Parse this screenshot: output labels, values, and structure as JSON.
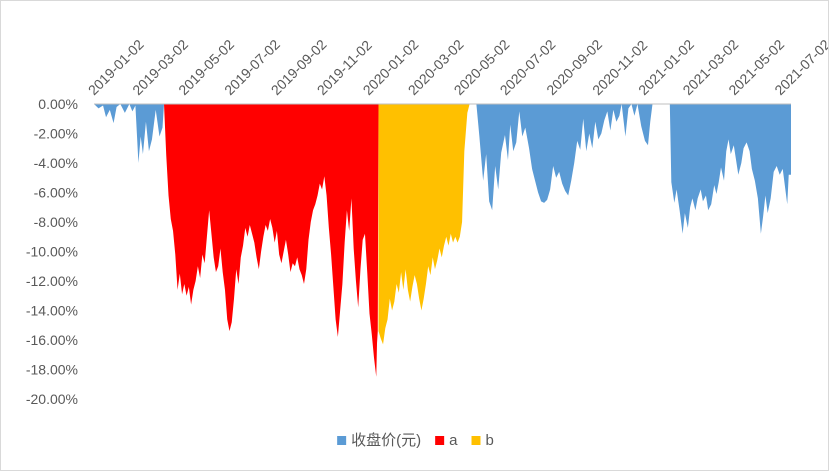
{
  "chart_data": {
    "type": "area",
    "title": "",
    "xlabel": "",
    "ylabel": "",
    "x_tick_labels": [
      "2019-01-02",
      "2019-03-02",
      "2019-05-02",
      "2019-07-02",
      "2019-09-02",
      "2019-11-02",
      "2020-01-02",
      "2020-03-02",
      "2020-05-02",
      "2020-07-02",
      "2020-09-02",
      "2020-11-02",
      "2021-01-02",
      "2021-03-02",
      "2021-05-02",
      "2021-07-02"
    ],
    "xlim": [
      "2019-01-02",
      "2021-07-16"
    ],
    "y_tick_labels": [
      "0.00%",
      "-2.00%",
      "-4.00%",
      "-6.00%",
      "-8.00%",
      "-10.00%",
      "-12.00%",
      "-14.00%",
      "-16.00%",
      "-18.00%",
      "-20.00%"
    ],
    "ylim": [
      -20,
      0
    ],
    "y_unit": "%",
    "grid": false,
    "legend_position": "bottom",
    "series": [
      {
        "name": "收盘价(元)",
        "color": "#5B9BD5",
        "points": [
          [
            "2019-01-02",
            0
          ],
          [
            "2019-01-08",
            -0.3
          ],
          [
            "2019-01-14",
            -0.1
          ],
          [
            "2019-01-18",
            -0.9
          ],
          [
            "2019-01-23",
            -0.4
          ],
          [
            "2019-01-28",
            -1.3
          ],
          [
            "2019-02-01",
            -0.2
          ],
          [
            "2019-02-06",
            0
          ],
          [
            "2019-02-12",
            -0.6
          ],
          [
            "2019-02-18",
            0
          ],
          [
            "2019-02-22",
            -0.5
          ],
          [
            "2019-02-26",
            -0.1
          ],
          [
            "2019-03-02",
            -4.0
          ],
          [
            "2019-03-05",
            -2.2
          ],
          [
            "2019-03-08",
            -3.4
          ],
          [
            "2019-03-12",
            -1.2
          ],
          [
            "2019-03-16",
            -3.2
          ],
          [
            "2019-03-20",
            -2.4
          ],
          [
            "2019-03-25",
            -0.4
          ],
          [
            "2019-03-30",
            -2.2
          ],
          [
            "2019-04-03",
            -1.6
          ],
          [
            "2019-04-05",
            0
          ],
          [
            "2020-05-24",
            0
          ],
          [
            "2020-05-28",
            -2.2
          ],
          [
            "2020-06-02",
            -5.2
          ],
          [
            "2020-06-06",
            -3.4
          ],
          [
            "2020-06-10",
            -6.6
          ],
          [
            "2020-06-14",
            -7.2
          ],
          [
            "2020-06-18",
            -4.2
          ],
          [
            "2020-06-22",
            -5.8
          ],
          [
            "2020-06-26",
            -3.3
          ],
          [
            "2020-07-01",
            -2.1
          ],
          [
            "2020-07-05",
            -3.8
          ],
          [
            "2020-07-08",
            -1.4
          ],
          [
            "2020-07-12",
            -3.2
          ],
          [
            "2020-07-16",
            -2.6
          ],
          [
            "2020-07-20",
            -0.5
          ],
          [
            "2020-07-24",
            -2.2
          ],
          [
            "2020-07-28",
            -1.6
          ],
          [
            "2020-08-02",
            -3.0
          ],
          [
            "2020-08-06",
            -4.4
          ],
          [
            "2020-08-10",
            -5.2
          ],
          [
            "2020-08-14",
            -6.0
          ],
          [
            "2020-08-18",
            -6.6
          ],
          [
            "2020-08-22",
            -6.7
          ],
          [
            "2020-08-26",
            -6.5
          ],
          [
            "2020-08-30",
            -5.8
          ],
          [
            "2020-09-03",
            -4.2
          ],
          [
            "2020-09-07",
            -5.0
          ],
          [
            "2020-09-11",
            -4.6
          ],
          [
            "2020-09-15",
            -5.4
          ],
          [
            "2020-09-19",
            -5.9
          ],
          [
            "2020-09-23",
            -6.2
          ],
          [
            "2020-09-27",
            -5.2
          ],
          [
            "2020-10-01",
            -4.0
          ],
          [
            "2020-10-05",
            -2.5
          ],
          [
            "2020-10-09",
            -3.1
          ],
          [
            "2020-10-13",
            -1.0
          ],
          [
            "2020-10-17",
            -3.2
          ],
          [
            "2020-10-21",
            -2.0
          ],
          [
            "2020-10-25",
            -3.0
          ],
          [
            "2020-10-29",
            -1.2
          ],
          [
            "2020-11-02",
            -2.4
          ],
          [
            "2020-11-06",
            -2.0
          ],
          [
            "2020-11-10",
            -1.1
          ],
          [
            "2020-11-14",
            -0.5
          ],
          [
            "2020-11-18",
            -1.8
          ],
          [
            "2020-11-22",
            -0.4
          ],
          [
            "2020-11-26",
            -1.2
          ],
          [
            "2020-11-30",
            -0.8
          ],
          [
            "2020-12-03",
            0
          ],
          [
            "2020-12-08",
            -2.2
          ],
          [
            "2020-12-12",
            -0.3
          ],
          [
            "2020-12-16",
            0
          ],
          [
            "2020-12-20",
            -0.8
          ],
          [
            "2020-12-24",
            0
          ],
          [
            "2020-12-29",
            -1.5
          ],
          [
            "2021-01-03",
            -2.5
          ],
          [
            "2021-01-07",
            -2.8
          ],
          [
            "2021-01-10",
            -1.2
          ],
          [
            "2021-01-13",
            0
          ],
          [
            "2021-01-16",
            0
          ],
          [
            "2021-02-05",
            0
          ],
          [
            "2021-02-07",
            -5.3
          ],
          [
            "2021-02-11",
            -6.7
          ],
          [
            "2021-02-14",
            -5.8
          ],
          [
            "2021-02-18",
            -7.2
          ],
          [
            "2021-02-22",
            -8.8
          ],
          [
            "2021-02-25",
            -7.4
          ],
          [
            "2021-03-01",
            -8.4
          ],
          [
            "2021-03-04",
            -7.0
          ],
          [
            "2021-03-07",
            -6.4
          ],
          [
            "2021-03-11",
            -7.2
          ],
          [
            "2021-03-14",
            -6.4
          ],
          [
            "2021-03-18",
            -5.8
          ],
          [
            "2021-03-21",
            -6.6
          ],
          [
            "2021-03-25",
            -6.2
          ],
          [
            "2021-03-28",
            -7.2
          ],
          [
            "2021-04-01",
            -6.8
          ],
          [
            "2021-04-05",
            -5.5
          ],
          [
            "2021-04-08",
            -6.1
          ],
          [
            "2021-04-11",
            -5.3
          ],
          [
            "2021-04-14",
            -4.3
          ],
          [
            "2021-04-18",
            -5.2
          ],
          [
            "2021-04-21",
            -3.2
          ],
          [
            "2021-04-24",
            -2.4
          ],
          [
            "2021-04-27",
            -3.4
          ],
          [
            "2021-05-01",
            -2.8
          ],
          [
            "2021-05-04",
            -3.8
          ],
          [
            "2021-05-07",
            -4.8
          ],
          [
            "2021-05-11",
            -4.0
          ],
          [
            "2021-05-14",
            -3.0
          ],
          [
            "2021-05-18",
            -2.6
          ],
          [
            "2021-05-22",
            -3.2
          ],
          [
            "2021-05-25",
            -4.4
          ],
          [
            "2021-05-29",
            -5.2
          ],
          [
            "2021-06-02",
            -6.4
          ],
          [
            "2021-06-06",
            -8.8
          ],
          [
            "2021-06-09",
            -7.6
          ],
          [
            "2021-06-12",
            -6.2
          ],
          [
            "2021-06-15",
            -7.4
          ],
          [
            "2021-06-19",
            -6.4
          ],
          [
            "2021-06-23",
            -4.6
          ],
          [
            "2021-06-27",
            -4.2
          ],
          [
            "2021-07-01",
            -4.8
          ],
          [
            "2021-07-05",
            -4.4
          ],
          [
            "2021-07-08",
            -5.6
          ],
          [
            "2021-07-11",
            -6.8
          ],
          [
            "2021-07-13",
            -4.8
          ],
          [
            "2021-07-16",
            -4.8
          ]
        ]
      },
      {
        "name": "a",
        "color": "#FF0000",
        "points": [
          [
            "2019-04-05",
            0
          ],
          [
            "2019-04-08",
            -3.5
          ],
          [
            "2019-04-11",
            -6.2
          ],
          [
            "2019-04-14",
            -7.8
          ],
          [
            "2019-04-17",
            -8.6
          ],
          [
            "2019-04-20",
            -10.2
          ],
          [
            "2019-04-23",
            -12.6
          ],
          [
            "2019-04-26",
            -11.5
          ],
          [
            "2019-04-29",
            -12.9
          ],
          [
            "2019-05-02",
            -12.2
          ],
          [
            "2019-05-05",
            -13.0
          ],
          [
            "2019-05-08",
            -12.4
          ],
          [
            "2019-05-11",
            -13.6
          ],
          [
            "2019-05-14",
            -12.6
          ],
          [
            "2019-05-17",
            -12.0
          ],
          [
            "2019-05-20",
            -11.0
          ],
          [
            "2019-05-23",
            -11.8
          ],
          [
            "2019-05-26",
            -10.2
          ],
          [
            "2019-05-29",
            -10.8
          ],
          [
            "2019-06-01",
            -9.0
          ],
          [
            "2019-06-04",
            -7.2
          ],
          [
            "2019-06-07",
            -8.8
          ],
          [
            "2019-06-10",
            -10.4
          ],
          [
            "2019-06-13",
            -11.4
          ],
          [
            "2019-06-16",
            -11.0
          ],
          [
            "2019-06-19",
            -9.8
          ],
          [
            "2019-06-22",
            -11.4
          ],
          [
            "2019-06-25",
            -12.6
          ],
          [
            "2019-06-28",
            -14.6
          ],
          [
            "2019-07-01",
            -15.4
          ],
          [
            "2019-07-04",
            -14.8
          ],
          [
            "2019-07-07",
            -13.2
          ],
          [
            "2019-07-10",
            -11.2
          ],
          [
            "2019-07-13",
            -12.2
          ],
          [
            "2019-07-16",
            -10.4
          ],
          [
            "2019-07-19",
            -9.6
          ],
          [
            "2019-07-22",
            -8.4
          ],
          [
            "2019-07-25",
            -9.0
          ],
          [
            "2019-07-28",
            -8.2
          ],
          [
            "2019-07-31",
            -8.8
          ],
          [
            "2019-08-03",
            -9.4
          ],
          [
            "2019-08-06",
            -10.4
          ],
          [
            "2019-08-09",
            -11.2
          ],
          [
            "2019-08-12",
            -10.0
          ],
          [
            "2019-08-15",
            -9.0
          ],
          [
            "2019-08-18",
            -8.2
          ],
          [
            "2019-08-21",
            -8.6
          ],
          [
            "2019-08-24",
            -7.8
          ],
          [
            "2019-08-27",
            -8.4
          ],
          [
            "2019-08-30",
            -9.4
          ],
          [
            "2019-09-02",
            -8.6
          ],
          [
            "2019-09-05",
            -10.2
          ],
          [
            "2019-09-08",
            -10.8
          ],
          [
            "2019-09-11",
            -10.0
          ],
          [
            "2019-09-14",
            -9.2
          ],
          [
            "2019-09-17",
            -10.2
          ],
          [
            "2019-09-20",
            -11.4
          ],
          [
            "2019-09-23",
            -10.8
          ],
          [
            "2019-09-26",
            -11.0
          ],
          [
            "2019-09-29",
            -10.4
          ],
          [
            "2019-10-02",
            -11.2
          ],
          [
            "2019-10-05",
            -11.6
          ],
          [
            "2019-10-08",
            -12.2
          ],
          [
            "2019-10-11",
            -11.2
          ],
          [
            "2019-10-14",
            -9.2
          ],
          [
            "2019-10-17",
            -8.0
          ],
          [
            "2019-10-20",
            -7.2
          ],
          [
            "2019-10-23",
            -6.8
          ],
          [
            "2019-10-26",
            -6.2
          ],
          [
            "2019-10-29",
            -5.4
          ],
          [
            "2019-11-01",
            -5.8
          ],
          [
            "2019-11-04",
            -4.9
          ],
          [
            "2019-11-07",
            -6.2
          ],
          [
            "2019-11-10",
            -8.4
          ],
          [
            "2019-11-13",
            -10.2
          ],
          [
            "2019-11-16",
            -12.4
          ],
          [
            "2019-11-19",
            -14.6
          ],
          [
            "2019-11-22",
            -15.8
          ],
          [
            "2019-11-25",
            -14.0
          ],
          [
            "2019-11-28",
            -12.2
          ],
          [
            "2019-12-01",
            -9.4
          ],
          [
            "2019-12-04",
            -7.2
          ],
          [
            "2019-12-07",
            -8.6
          ],
          [
            "2019-12-10",
            -6.4
          ],
          [
            "2019-12-13",
            -9.8
          ],
          [
            "2019-12-16",
            -12.0
          ],
          [
            "2019-12-19",
            -13.8
          ],
          [
            "2019-12-22",
            -11.2
          ],
          [
            "2019-12-25",
            -9.2
          ],
          [
            "2019-12-28",
            -8.8
          ],
          [
            "2019-12-31",
            -11.4
          ],
          [
            "2020-01-03",
            -14.2
          ],
          [
            "2020-01-06",
            -15.6
          ],
          [
            "2020-01-09",
            -17.2
          ],
          [
            "2020-01-12",
            -18.5
          ],
          [
            "2020-01-13",
            -16.2
          ],
          [
            "2020-01-14",
            -15.4
          ],
          [
            "2020-01-15",
            0
          ]
        ]
      },
      {
        "name": "b",
        "color": "#FFC000",
        "points": [
          [
            "2020-01-15",
            0
          ],
          [
            "2020-01-15",
            -15.4
          ],
          [
            "2020-01-18",
            -15.9
          ],
          [
            "2020-01-21",
            -16.3
          ],
          [
            "2020-01-24",
            -15.2
          ],
          [
            "2020-01-27",
            -14.6
          ],
          [
            "2020-01-30",
            -13.2
          ],
          [
            "2020-02-02",
            -14.0
          ],
          [
            "2020-02-05",
            -13.4
          ],
          [
            "2020-02-08",
            -12.2
          ],
          [
            "2020-02-11",
            -12.8
          ],
          [
            "2020-02-14",
            -11.4
          ],
          [
            "2020-02-17",
            -12.6
          ],
          [
            "2020-02-20",
            -11.2
          ],
          [
            "2020-02-23",
            -12.6
          ],
          [
            "2020-02-26",
            -13.4
          ],
          [
            "2020-02-29",
            -12.4
          ],
          [
            "2020-03-03",
            -11.6
          ],
          [
            "2020-03-06",
            -12.2
          ],
          [
            "2020-03-09",
            -13.2
          ],
          [
            "2020-03-12",
            -14.0
          ],
          [
            "2020-03-15",
            -13.2
          ],
          [
            "2020-03-18",
            -12.2
          ],
          [
            "2020-03-21",
            -11.0
          ],
          [
            "2020-03-24",
            -11.6
          ],
          [
            "2020-03-27",
            -10.4
          ],
          [
            "2020-03-30",
            -11.2
          ],
          [
            "2020-04-02",
            -10.6
          ],
          [
            "2020-04-05",
            -9.8
          ],
          [
            "2020-04-08",
            -10.4
          ],
          [
            "2020-04-11",
            -9.6
          ],
          [
            "2020-04-14",
            -9.0
          ],
          [
            "2020-04-17",
            -9.6
          ],
          [
            "2020-04-20",
            -8.8
          ],
          [
            "2020-04-23",
            -9.4
          ],
          [
            "2020-04-26",
            -9.0
          ],
          [
            "2020-04-29",
            -9.4
          ],
          [
            "2020-05-02",
            -9.0
          ],
          [
            "2020-05-05",
            -8.0
          ],
          [
            "2020-05-08",
            -3.2
          ],
          [
            "2020-05-12",
            -0.6
          ],
          [
            "2020-05-15",
            0
          ]
        ]
      }
    ]
  }
}
